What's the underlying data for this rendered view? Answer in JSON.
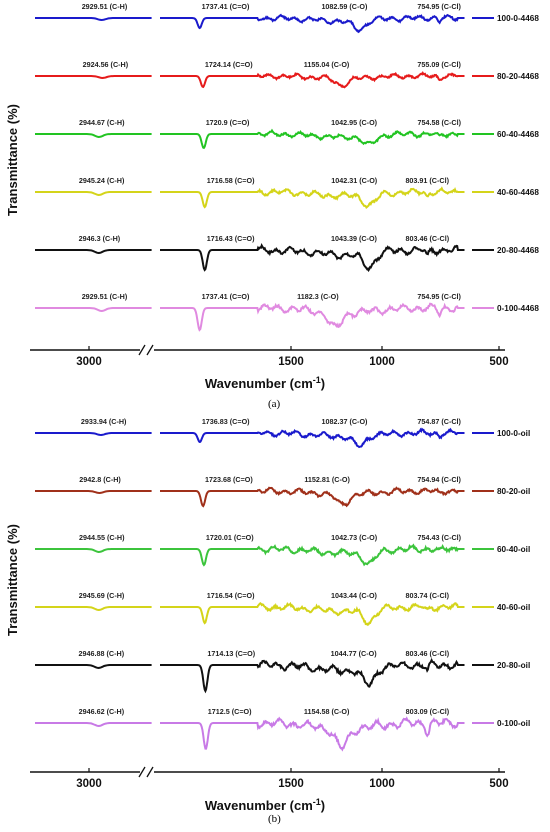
{
  "chart_data": [
    {
      "type": "line",
      "panel_label": "(a)",
      "xlabel": "Wavenumber (cm",
      "xlabel_sup": "-1",
      "xlabel_end": ")",
      "ylabel": "Transmittance (%)",
      "x_reversed": true,
      "axis_break": true,
      "x_ticks": [
        "3000",
        "1500",
        "1000",
        "500"
      ],
      "series": [
        {
          "name": "100-0-4468",
          "color": "#1a1acc",
          "peaks": [
            {
              "x": 2929.51,
              "label": "2929.51 (C-H)",
              "depth": 2
            },
            {
              "x": 1737.41,
              "label": "1737.41 (C=O)",
              "depth": 10
            },
            {
              "x": 1082.59,
              "label": "1082.59 (C-O)",
              "depth": 9
            },
            {
              "x": 754.95,
              "label": "754.95 (C-Cl)",
              "depth": 3
            }
          ]
        },
        {
          "name": "80-20-4468",
          "color": "#e61b1b",
          "peaks": [
            {
              "x": 2924.56,
              "label": "2924.56 (C-H)",
              "depth": 2
            },
            {
              "x": 1724.14,
              "label": "1724.14 (C=O)",
              "depth": 11
            },
            {
              "x": 1155.04,
              "label": "1155.04 (C-O)",
              "depth": 7
            },
            {
              "x": 755.09,
              "label": "755.09 (C-Cl)",
              "depth": 3
            }
          ]
        },
        {
          "name": "60-40-4468",
          "color": "#22c422",
          "peaks": [
            {
              "x": 2944.67,
              "label": "2944.67 (C-H)",
              "depth": 3
            },
            {
              "x": 1720.9,
              "label": "1720.9 (C=O)",
              "depth": 14
            },
            {
              "x": 1042.95,
              "label": "1042.95 (C-O)",
              "depth": 9
            },
            {
              "x": 754.58,
              "label": "754.58 (C-Cl)",
              "depth": 3
            }
          ]
        },
        {
          "name": "40-60-4468",
          "color": "#d4d41a",
          "peaks": [
            {
              "x": 2945.24,
              "label": "2945.24 (C-H)",
              "depth": 3
            },
            {
              "x": 1716.58,
              "label": "1716.58 (C=O)",
              "depth": 15
            },
            {
              "x": 1042.31,
              "label": "1042.31 (C-O)",
              "depth": 11
            },
            {
              "x": 803.91,
              "label": "803.91 (C-Cl)",
              "depth": 4
            }
          ]
        },
        {
          "name": "20-80-4468",
          "color": "#111111",
          "peaks": [
            {
              "x": 2946.3,
              "label": "2946.3 (C-H)",
              "depth": 3
            },
            {
              "x": 1716.43,
              "label": "1716.43 (C=O)",
              "depth": 20
            },
            {
              "x": 1043.39,
              "label": "1043.39 (C-O)",
              "depth": 14
            },
            {
              "x": 803.46,
              "label": "803.46 (C-Cl)",
              "depth": 6
            }
          ]
        },
        {
          "name": "0-100-4468",
          "color": "#e08ae0",
          "peaks": [
            {
              "x": 2929.51,
              "label": "2929.51 (C-H)",
              "depth": 3
            },
            {
              "x": 1737.41,
              "label": "1737.41 (C=O)",
              "depth": 22
            },
            {
              "x": 1182.3,
              "label": "1182.3 (C-O)",
              "depth": 15
            },
            {
              "x": 754.95,
              "label": "754.95 (C-Cl)",
              "depth": 6
            }
          ]
        }
      ]
    },
    {
      "type": "line",
      "panel_label": "(b)",
      "xlabel": "Wavenumber (cm",
      "xlabel_sup": "-1",
      "xlabel_end": ")",
      "ylabel": "Transmittance (%)",
      "x_reversed": true,
      "axis_break": true,
      "x_ticks": [
        "3000",
        "1500",
        "1000",
        "500"
      ],
      "series": [
        {
          "name": "100-0-oil",
          "color": "#1a1acc",
          "peaks": [
            {
              "x": 2933.94,
              "label": "2933.94 (C-H)",
              "depth": 2
            },
            {
              "x": 1736.83,
              "label": "1736.83 (C=O)",
              "depth": 9
            },
            {
              "x": 1082.37,
              "label": "1082.37 (C-O)",
              "depth": 10
            },
            {
              "x": 754.87,
              "label": "754.87 (C-Cl)",
              "depth": 3
            }
          ]
        },
        {
          "name": "80-20-oil",
          "color": "#a0301a",
          "peaks": [
            {
              "x": 2942.8,
              "label": "2942.8 (C-H)",
              "depth": 2
            },
            {
              "x": 1723.68,
              "label": "1723.68 (C=O)",
              "depth": 15
            },
            {
              "x": 1152.81,
              "label": "1152.81 (C-O)",
              "depth": 10
            },
            {
              "x": 754.94,
              "label": "754.94 (C-Cl)",
              "depth": 3
            }
          ]
        },
        {
          "name": "60-40-oil",
          "color": "#3cc43c",
          "peaks": [
            {
              "x": 2944.55,
              "label": "2944.55 (C-H)",
              "depth": 3
            },
            {
              "x": 1720.01,
              "label": "1720.01 (C=O)",
              "depth": 16
            },
            {
              "x": 1042.73,
              "label": "1042.73 (C-O)",
              "depth": 12
            },
            {
              "x": 754.43,
              "label": "754.43 (C-Cl)",
              "depth": 3
            }
          ]
        },
        {
          "name": "40-60-oil",
          "color": "#d4d41a",
          "peaks": [
            {
              "x": 2945.69,
              "label": "2945.69 (C-H)",
              "depth": 3
            },
            {
              "x": 1716.54,
              "label": "1716.54 (C=O)",
              "depth": 16
            },
            {
              "x": 1043.44,
              "label": "1043.44 (C-O)",
              "depth": 12
            },
            {
              "x": 803.74,
              "label": "803.74 (C-Cl)",
              "depth": 4
            }
          ]
        },
        {
          "name": "20-80-oil",
          "color": "#111111",
          "peaks": [
            {
              "x": 2946.88,
              "label": "2946.88 (C-H)",
              "depth": 3
            },
            {
              "x": 1714.13,
              "label": "1714.13 (C=O)",
              "depth": 26
            },
            {
              "x": 1044.77,
              "label": "1044.77 (C-O)",
              "depth": 16
            },
            {
              "x": 803.46,
              "label": "803.46 (C-Cl)",
              "depth": 6
            }
          ]
        },
        {
          "name": "0-100-oil",
          "color": "#c87ae6",
          "peaks": [
            {
              "x": 2946.62,
              "label": "2946.62 (C-H)",
              "depth": 3
            },
            {
              "x": 1712.5,
              "label": "1712.5 (C=O)",
              "depth": 26
            },
            {
              "x": 1154.58,
              "label": "1154.58 (C-O)",
              "depth": 18
            },
            {
              "x": 803.09,
              "label": "803.09 (C-Cl)",
              "depth": 10
            }
          ]
        }
      ]
    }
  ]
}
